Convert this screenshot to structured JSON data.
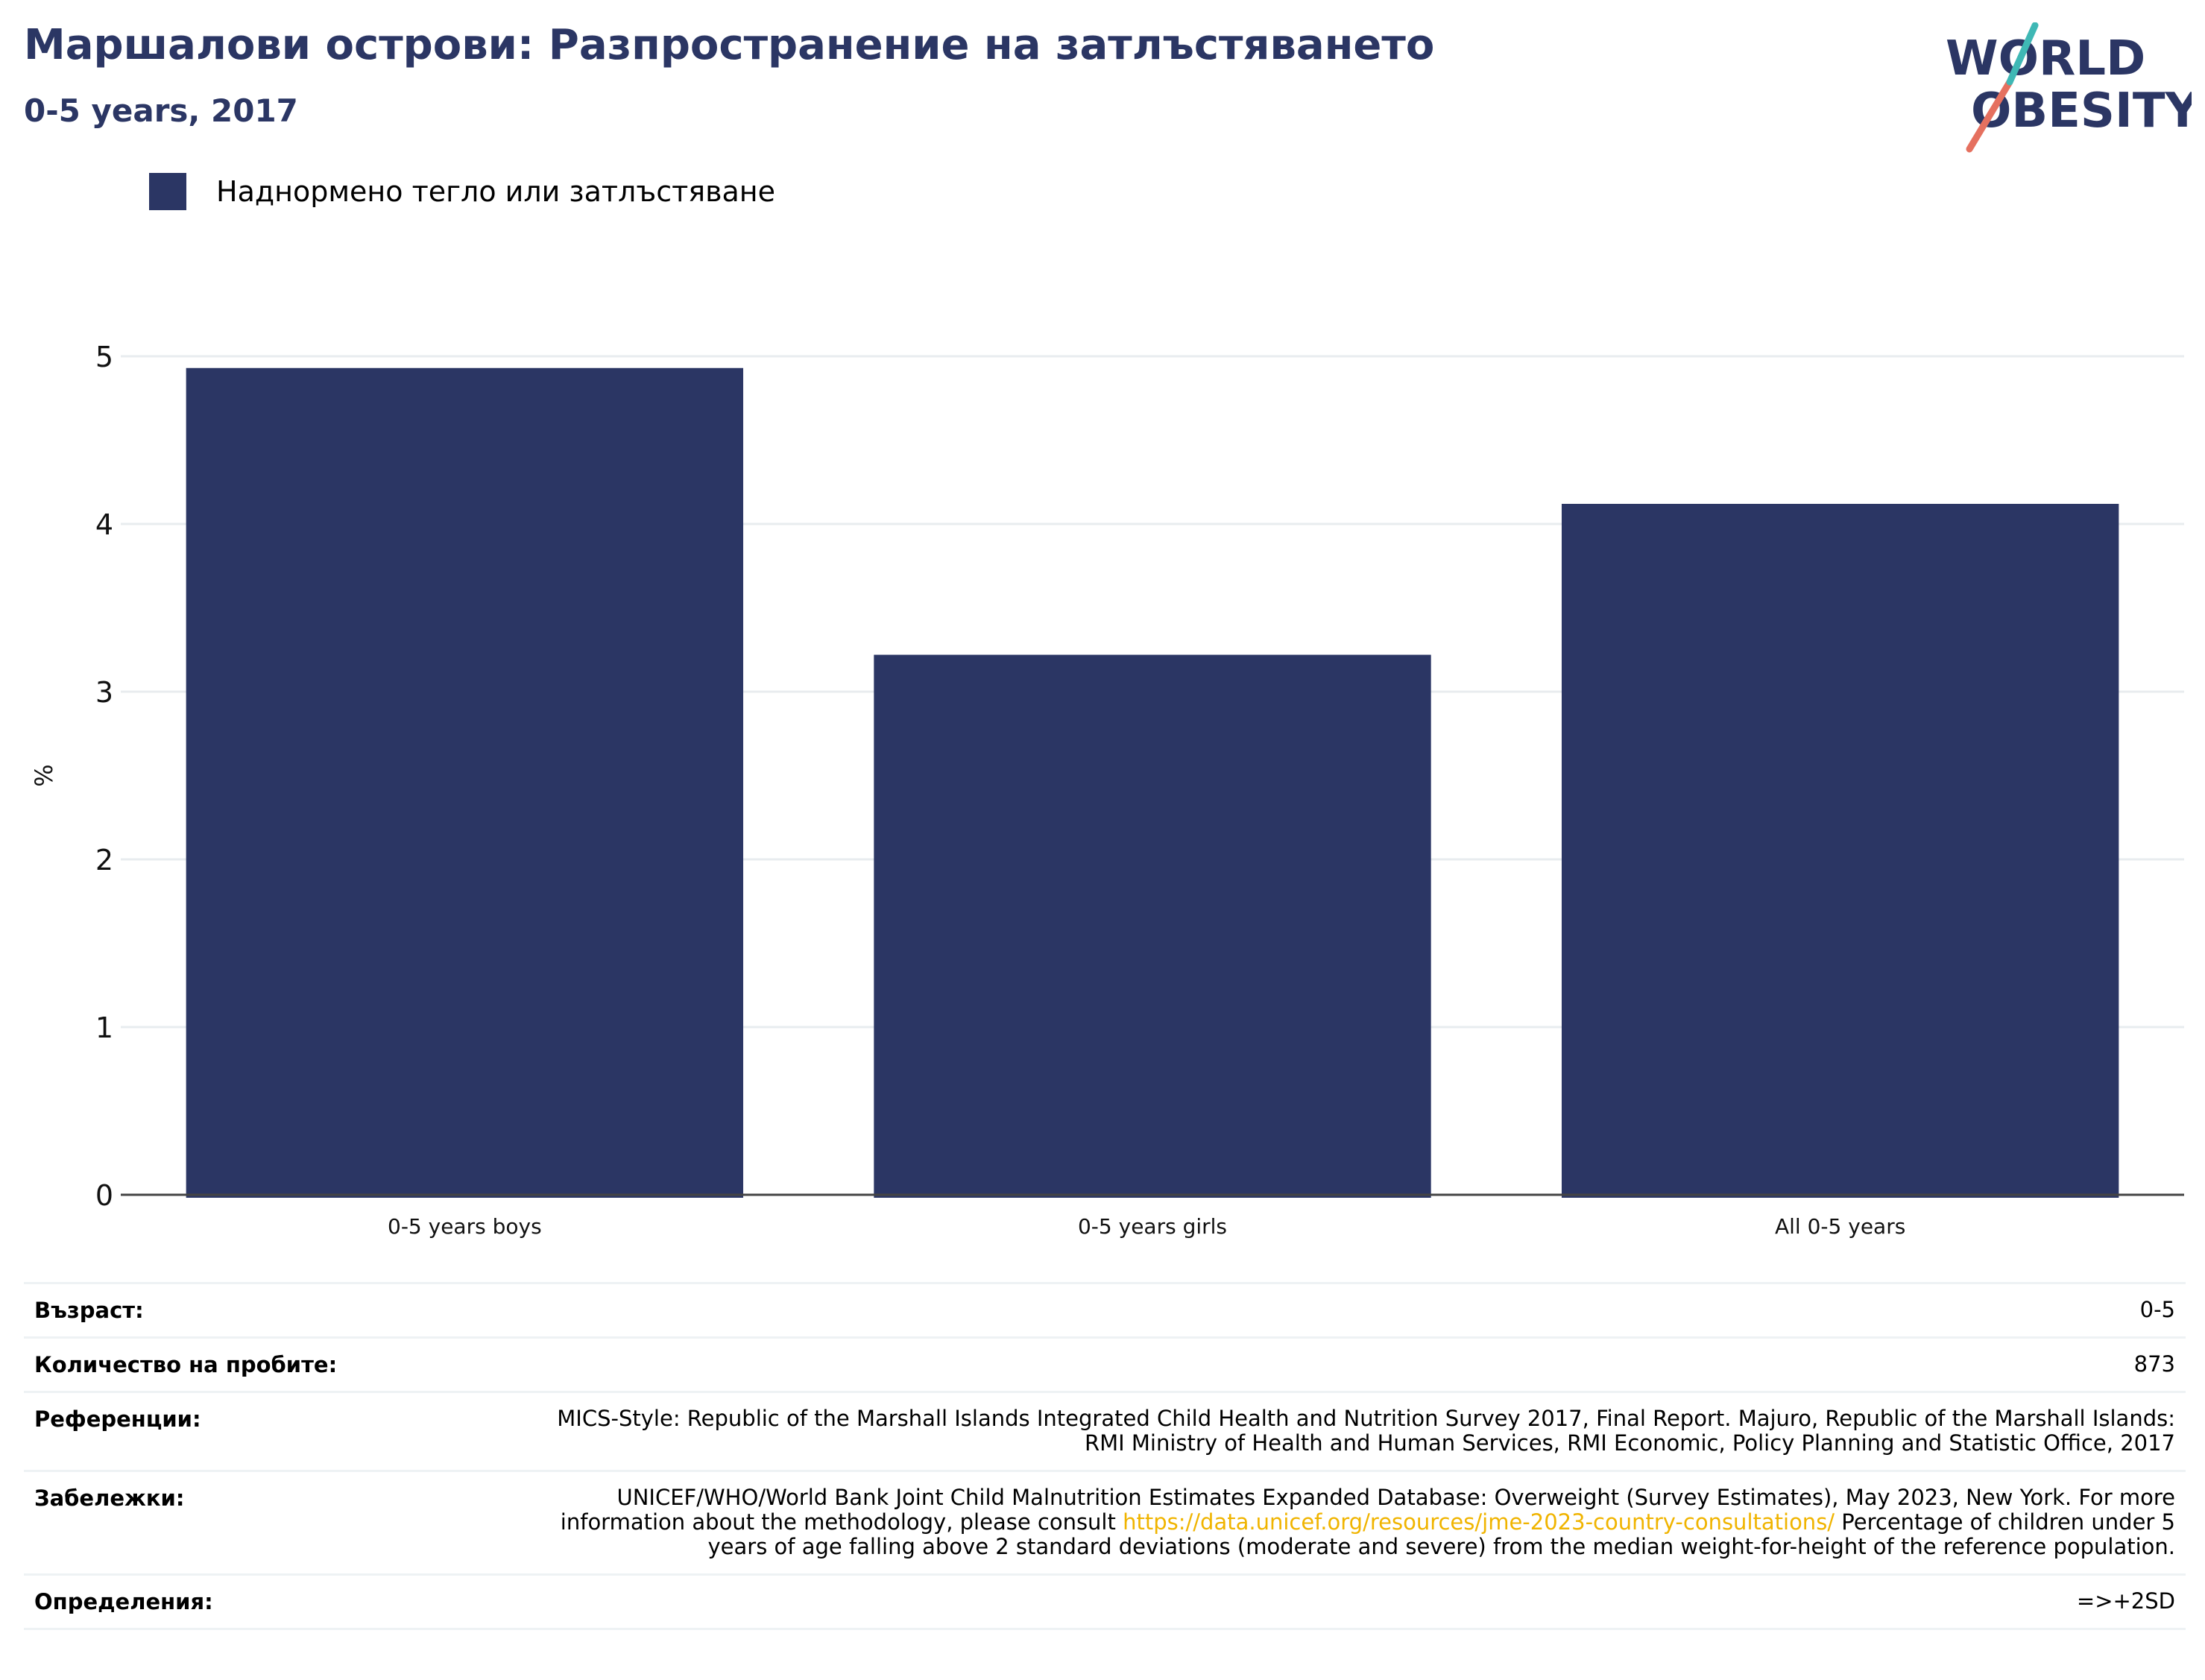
{
  "header": {
    "title": "Маршалови острови: Разпространение на затлъстяването",
    "subtitle": "0-5 years, 2017"
  },
  "logo": {
    "line1": "WORLD",
    "line2": "OBESITY"
  },
  "colors": {
    "bar": "#2b3664",
    "title": "#2b3664",
    "grid": "#e8ecef",
    "link": "#f0b400"
  },
  "chart_data": {
    "type": "bar",
    "categories": [
      "0-5 years boys",
      "0-5 years girls",
      "All 0-5 years"
    ],
    "series": [
      {
        "name": "Наднормено тегло или затлъстяване",
        "values": [
          4.93,
          3.22,
          4.12
        ]
      }
    ],
    "ylabel": "%",
    "ylim": [
      0,
      5
    ],
    "yticks": [
      "0",
      "1",
      "2",
      "3",
      "4",
      "5"
    ],
    "grid": true,
    "legend": "top-left"
  },
  "info": {
    "age": {
      "label": "Възраст:",
      "value": "0-5"
    },
    "sample": {
      "label": "Количество на пробите:",
      "value": "873"
    },
    "references": {
      "label": "Референции:",
      "value": "MICS-Style: Republic of the Marshall Islands Integrated Child Health and Nutrition Survey 2017, Final Report. Majuro, Republic of the Marshall Islands: RMI Ministry of Health and Human Services, RMI Economic, Policy Planning and Statistic Office, 2017"
    },
    "notes": {
      "label": "Забележки:",
      "text_before": "UNICEF/WHO/World Bank Joint Child Malnutrition Estimates Expanded Database: Overweight (Survey Estimates), May 2023, New York. For more information about the methodology, please consult ",
      "link": "https://data.unicef.org/resources/jme-2023-country-consultations/",
      "text_after": " Percentage of children under 5 years of age falling above 2 standard deviations (moderate and severe) from the median weight-for-height of the reference population."
    },
    "definitions": {
      "label": "Определения:",
      "value": "=>+2SD"
    }
  }
}
